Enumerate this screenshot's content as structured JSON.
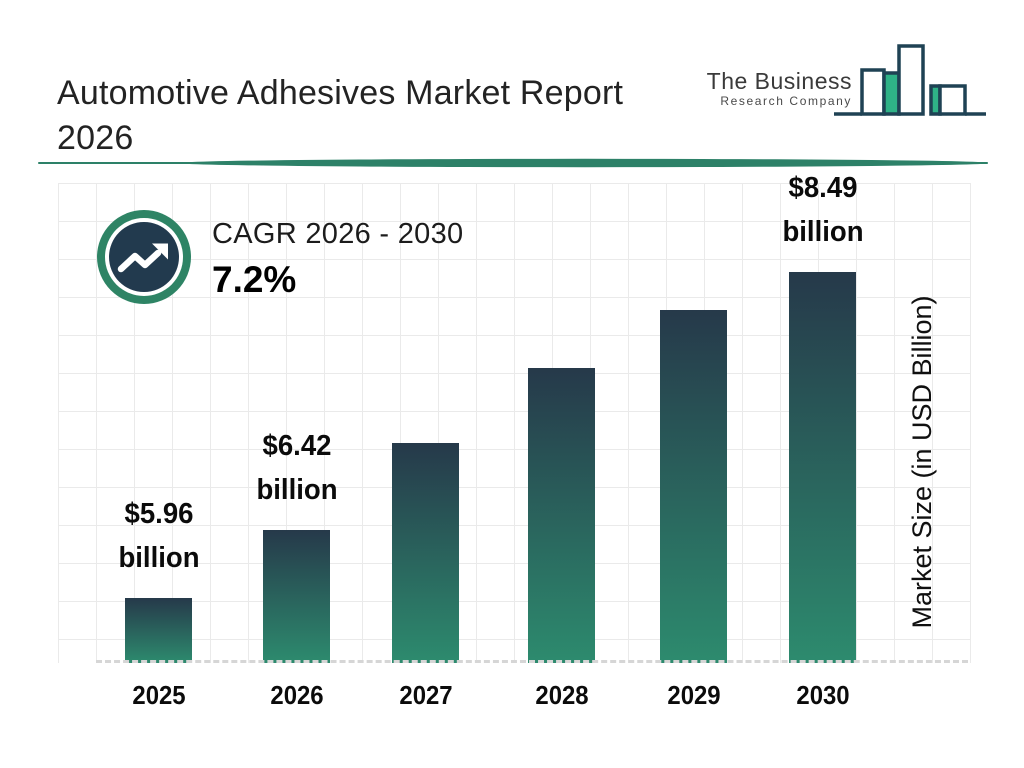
{
  "header": {
    "title_line1": "Automotive Adhesives Market Report",
    "title_line2": "2026"
  },
  "logo": {
    "line1": "The Business",
    "line2": "Research Company"
  },
  "cagr": {
    "label": "CAGR 2026 - 2030",
    "value": "7.2%"
  },
  "chart_data": {
    "type": "bar",
    "title": "Automotive Adhesives Market Report 2026",
    "categories": [
      "2025",
      "2026",
      "2027",
      "2028",
      "2029",
      "2030"
    ],
    "values": [
      5.96,
      6.42,
      7.05,
      7.65,
      8.15,
      8.49
    ],
    "values_estimated": [
      false,
      false,
      true,
      true,
      true,
      false
    ],
    "value_labels": [
      [
        "$5.96",
        "billion"
      ],
      [
        "$6.42",
        "billion"
      ],
      null,
      null,
      null,
      [
        "$8.49",
        "billion"
      ]
    ],
    "xlabel": "",
    "ylabel": "Market Size (in USD Billion)",
    "legend": false,
    "grid": true,
    "baseline_style": "dashed",
    "bar_color_top": "#26394a",
    "bar_color_bottom": "#2d8b6e"
  },
  "colors": {
    "divider": "#2d8168",
    "badge_ring": "#2e8465",
    "badge_inner": "#223a4e",
    "grid_line": "#eaeaea",
    "logo_outline": "#1f4254",
    "logo_green": "#2fb287"
  }
}
